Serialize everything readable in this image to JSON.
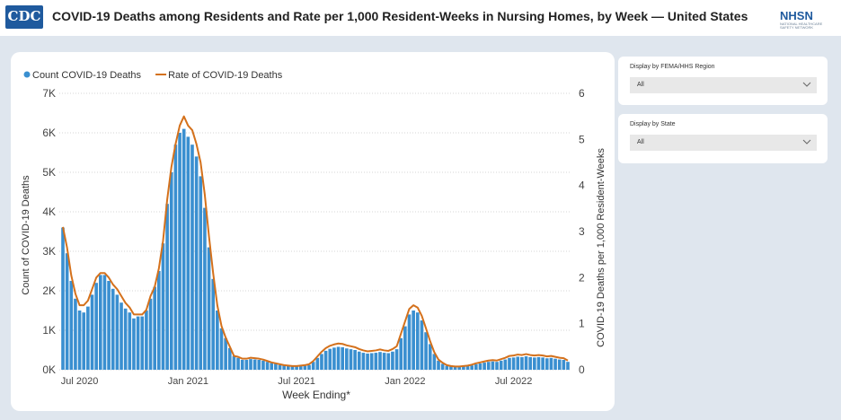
{
  "header": {
    "cdc_logo": "CDC",
    "title": "COVID-19 Deaths among Residents and Rate per 1,000 Resident-Weeks in Nursing Homes, by Week — United States",
    "nhsn_logo": "NHSN",
    "nhsn_subtitle": "NATIONAL HEALTHCARE SAFETY NETWORK"
  },
  "filters": [
    {
      "label": "Display by FEMA/HHS Region",
      "value": "All"
    },
    {
      "label": "Display by State",
      "value": "All"
    }
  ],
  "chart_data": {
    "type": "bar-line",
    "xlabel": "Week Ending*",
    "ylabel": "Count of COVID-19 Deaths",
    "y2label": "COVID-19 Deaths per 1,000 Resident-Weeks",
    "categories": [
      null,
      null,
      null,
      null,
      "Jul 2020",
      null,
      null,
      null,
      null,
      null,
      null,
      null,
      null,
      null,
      null,
      null,
      null,
      null,
      null,
      null,
      null,
      null,
      null,
      null,
      null,
      null,
      null,
      null,
      null,
      null,
      "Jan 2021",
      null,
      null,
      null,
      null,
      null,
      null,
      null,
      null,
      null,
      null,
      null,
      null,
      null,
      null,
      null,
      null,
      null,
      null,
      null,
      null,
      null,
      null,
      null,
      null,
      null,
      "Jul 2021",
      null,
      null,
      null,
      null,
      null,
      null,
      null,
      null,
      null,
      null,
      null,
      null,
      null,
      null,
      null,
      null,
      null,
      null,
      null,
      null,
      null,
      null,
      null,
      null,
      null,
      "Jan 2022",
      null,
      null,
      null,
      null,
      null,
      null,
      null,
      null,
      null,
      null,
      null,
      null,
      null,
      null,
      null,
      null,
      null,
      null,
      null,
      null,
      null,
      null,
      null,
      null,
      null,
      "Jul 2022",
      null,
      null,
      null,
      null,
      null,
      null,
      null,
      null,
      null,
      null,
      null,
      null,
      null
    ],
    "series": [
      {
        "name": "Count COVID-19 Deaths",
        "color": "#3a8fd0",
        "values": [
          3600,
          2950,
          2250,
          1800,
          1500,
          1450,
          1600,
          1900,
          2200,
          2400,
          2400,
          2250,
          2050,
          1900,
          1700,
          1550,
          1450,
          1300,
          1350,
          1350,
          1500,
          1800,
          2100,
          2500,
          3200,
          4200,
          5000,
          5700,
          6000,
          6100,
          5900,
          5700,
          5400,
          4900,
          4100,
          3100,
          2300,
          1500,
          1050,
          800,
          550,
          350,
          300,
          250,
          250,
          270,
          260,
          250,
          230,
          200,
          170,
          150,
          120,
          110,
          100,
          90,
          80,
          90,
          100,
          120,
          200,
          300,
          400,
          480,
          530,
          560,
          580,
          570,
          540,
          520,
          500,
          460,
          430,
          410,
          420,
          430,
          450,
          430,
          420,
          460,
          520,
          800,
          1100,
          1400,
          1500,
          1450,
          1250,
          950,
          650,
          400,
          230,
          150,
          100,
          80,
          70,
          70,
          80,
          90,
          110,
          140,
          160,
          180,
          200,
          210,
          200,
          230,
          260,
          300,
          310,
          330,
          320,
          340,
          320,
          310,
          320,
          310,
          290,
          300,
          280,
          260,
          250,
          200
        ]
      },
      {
        "name": "Rate of COVID-19 Deaths",
        "color": "#d4711c",
        "axis": "y2",
        "values": [
          3.1,
          2.65,
          2.05,
          1.65,
          1.4,
          1.4,
          1.5,
          1.75,
          2.0,
          2.1,
          2.1,
          2.0,
          1.85,
          1.75,
          1.6,
          1.45,
          1.35,
          1.2,
          1.2,
          1.2,
          1.3,
          1.6,
          1.8,
          2.2,
          2.8,
          3.7,
          4.4,
          4.9,
          5.3,
          5.5,
          5.3,
          5.2,
          4.9,
          4.5,
          3.8,
          2.9,
          2.1,
          1.4,
          0.95,
          0.7,
          0.5,
          0.3,
          0.28,
          0.24,
          0.24,
          0.26,
          0.25,
          0.24,
          0.22,
          0.19,
          0.16,
          0.14,
          0.12,
          0.1,
          0.09,
          0.08,
          0.08,
          0.09,
          0.1,
          0.12,
          0.19,
          0.29,
          0.39,
          0.47,
          0.52,
          0.55,
          0.57,
          0.56,
          0.53,
          0.51,
          0.49,
          0.45,
          0.42,
          0.4,
          0.41,
          0.42,
          0.44,
          0.42,
          0.41,
          0.45,
          0.51,
          0.78,
          1.05,
          1.32,
          1.4,
          1.35,
          1.17,
          0.9,
          0.62,
          0.38,
          0.22,
          0.15,
          0.1,
          0.08,
          0.07,
          0.07,
          0.08,
          0.09,
          0.11,
          0.14,
          0.16,
          0.18,
          0.2,
          0.21,
          0.2,
          0.23,
          0.26,
          0.3,
          0.31,
          0.33,
          0.32,
          0.34,
          0.32,
          0.31,
          0.32,
          0.31,
          0.29,
          0.3,
          0.28,
          0.26,
          0.25,
          0.2
        ]
      }
    ],
    "ylim": [
      0,
      7000
    ],
    "yticks": [
      {
        "value": 0,
        "label": "0K"
      },
      {
        "value": 1000,
        "label": "1K"
      },
      {
        "value": 2000,
        "label": "2K"
      },
      {
        "value": 3000,
        "label": "3K"
      },
      {
        "value": 4000,
        "label": "4K"
      },
      {
        "value": 5000,
        "label": "5K"
      },
      {
        "value": 6000,
        "label": "6K"
      },
      {
        "value": 7000,
        "label": "7K"
      }
    ],
    "y2lim": [
      0,
      6
    ],
    "y2ticks": [
      0,
      1,
      2,
      3,
      4,
      5,
      6
    ],
    "grid": true,
    "legend": "top-left"
  }
}
